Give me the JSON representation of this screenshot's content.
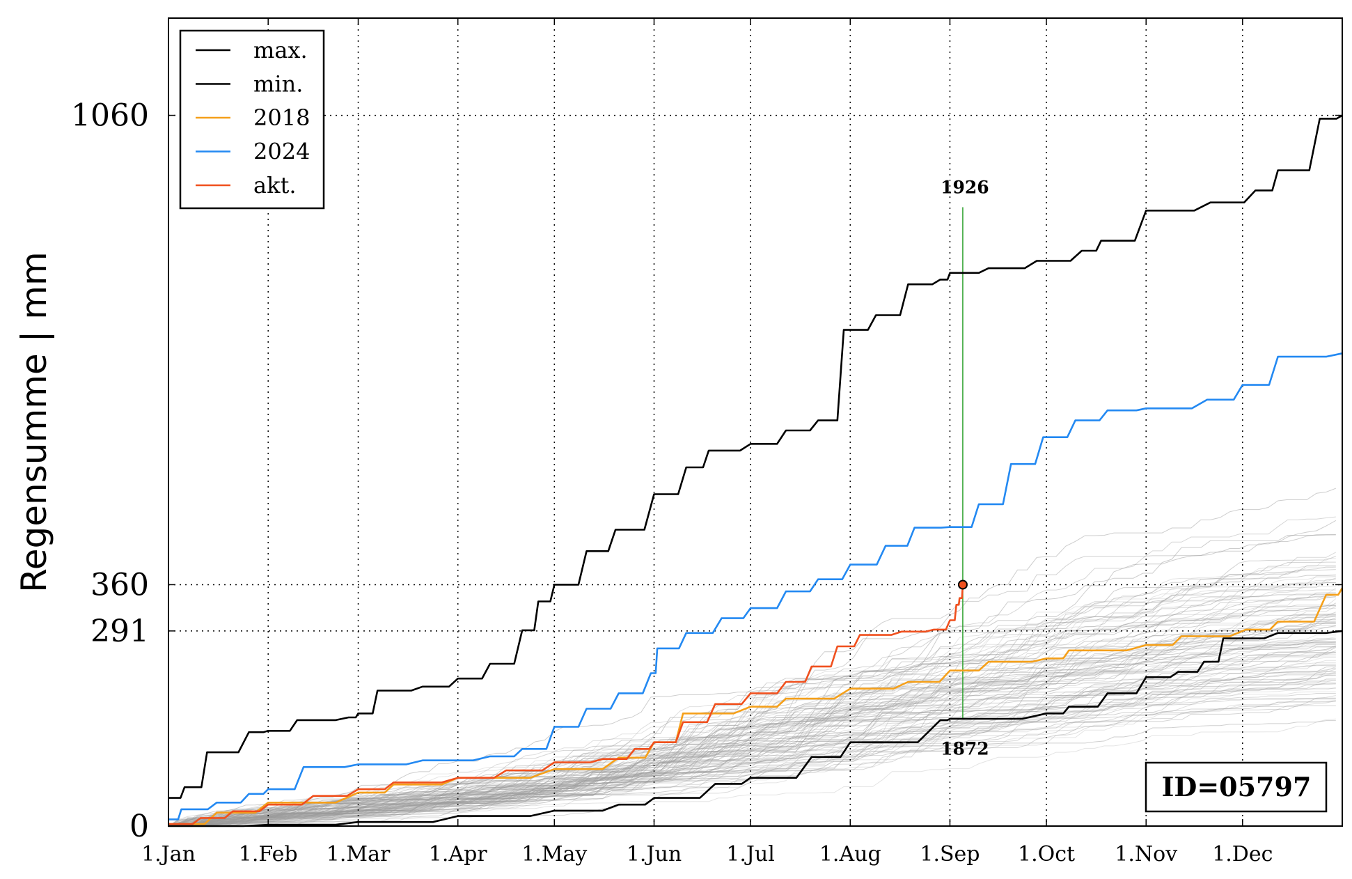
{
  "chart_data": {
    "type": "line",
    "title": "",
    "xlabel": "",
    "ylabel": "Regensumme | mm",
    "x_ticks": [
      "1.Jan",
      "1.Feb",
      "1.Mar",
      "1.Apr",
      "1.May",
      "1.Jun",
      "1.Jul",
      "1.Aug",
      "1.Sep",
      "1.Oct",
      "1.Nov",
      "1.Dec"
    ],
    "x_tick_days": [
      0,
      31,
      59,
      90,
      120,
      151,
      181,
      212,
      243,
      273,
      304,
      334
    ],
    "xlim": [
      0,
      365
    ],
    "ylim": [
      0,
      1205
    ],
    "y_ticks": [
      0,
      291,
      360,
      1060
    ],
    "y_tick_labels": [
      "0",
      "291",
      "360",
      "1060"
    ],
    "grid": "dotted",
    "legend_position": "top-left",
    "legend": [
      {
        "name": "max.",
        "color": "#000000"
      },
      {
        "name": "min.",
        "color": "#000000"
      },
      {
        "name": "2018",
        "color": "#F5A01A"
      },
      {
        "name": "2024",
        "color": "#2389F2"
      },
      {
        "name": "akt.",
        "color": "#F0501E"
      }
    ],
    "series": [
      {
        "key": "max",
        "color": "#000000",
        "points": [
          [
            0,
            42
          ],
          [
            5,
            58
          ],
          [
            12,
            110
          ],
          [
            25,
            140
          ],
          [
            31,
            142
          ],
          [
            40,
            158
          ],
          [
            56,
            162
          ],
          [
            59,
            168
          ],
          [
            65,
            202
          ],
          [
            79,
            208
          ],
          [
            90,
            220
          ],
          [
            100,
            242
          ],
          [
            110,
            292
          ],
          [
            115,
            335
          ],
          [
            120,
            360
          ],
          [
            130,
            410
          ],
          [
            139,
            442
          ],
          [
            151,
            495
          ],
          [
            161,
            535
          ],
          [
            168,
            560
          ],
          [
            181,
            570
          ],
          [
            192,
            590
          ],
          [
            202,
            605
          ],
          [
            210,
            740
          ],
          [
            220,
            762
          ],
          [
            230,
            808
          ],
          [
            240,
            815
          ],
          [
            243,
            825
          ],
          [
            255,
            832
          ],
          [
            270,
            843
          ],
          [
            284,
            858
          ],
          [
            290,
            873
          ],
          [
            304,
            918
          ],
          [
            324,
            930
          ],
          [
            338,
            948
          ],
          [
            345,
            978
          ],
          [
            358,
            1055
          ],
          [
            365,
            1060
          ]
        ]
      },
      {
        "key": "min",
        "color": "#000000",
        "points": [
          [
            0,
            0
          ],
          [
            31,
            2
          ],
          [
            59,
            6
          ],
          [
            90,
            15
          ],
          [
            120,
            23
          ],
          [
            140,
            32
          ],
          [
            151,
            42
          ],
          [
            170,
            63
          ],
          [
            181,
            72
          ],
          [
            200,
            103
          ],
          [
            212,
            125
          ],
          [
            240,
            158
          ],
          [
            243,
            160
          ],
          [
            273,
            168
          ],
          [
            280,
            178
          ],
          [
            292,
            198
          ],
          [
            304,
            222
          ],
          [
            314,
            230
          ],
          [
            322,
            245
          ],
          [
            328,
            280
          ],
          [
            345,
            288
          ],
          [
            365,
            291
          ]
        ]
      },
      {
        "key": "y2018",
        "color": "#F5A01A",
        "points": [
          [
            0,
            3
          ],
          [
            15,
            20
          ],
          [
            31,
            35
          ],
          [
            59,
            50
          ],
          [
            70,
            62
          ],
          [
            90,
            72
          ],
          [
            120,
            85
          ],
          [
            140,
            102
          ],
          [
            151,
            125
          ],
          [
            160,
            168
          ],
          [
            181,
            178
          ],
          [
            192,
            190
          ],
          [
            212,
            205
          ],
          [
            230,
            215
          ],
          [
            243,
            232
          ],
          [
            255,
            245
          ],
          [
            273,
            250
          ],
          [
            280,
            262
          ],
          [
            304,
            270
          ],
          [
            315,
            283
          ],
          [
            335,
            293
          ],
          [
            345,
            305
          ],
          [
            360,
            345
          ],
          [
            365,
            355
          ]
        ]
      },
      {
        "key": "y2024",
        "color": "#2389F2",
        "points": [
          [
            0,
            10
          ],
          [
            4,
            25
          ],
          [
            15,
            35
          ],
          [
            25,
            48
          ],
          [
            31,
            55
          ],
          [
            42,
            88
          ],
          [
            59,
            92
          ],
          [
            79,
            98
          ],
          [
            100,
            104
          ],
          [
            110,
            115
          ],
          [
            120,
            148
          ],
          [
            130,
            175
          ],
          [
            140,
            198
          ],
          [
            150,
            228
          ],
          [
            152,
            265
          ],
          [
            161,
            288
          ],
          [
            172,
            310
          ],
          [
            181,
            325
          ],
          [
            192,
            350
          ],
          [
            202,
            368
          ],
          [
            212,
            390
          ],
          [
            223,
            418
          ],
          [
            232,
            445
          ],
          [
            243,
            446
          ],
          [
            252,
            480
          ],
          [
            262,
            540
          ],
          [
            272,
            580
          ],
          [
            282,
            605
          ],
          [
            292,
            620
          ],
          [
            304,
            623
          ],
          [
            323,
            636
          ],
          [
            334,
            658
          ],
          [
            345,
            700
          ],
          [
            365,
            705
          ]
        ]
      },
      {
        "key": "akt",
        "color": "#F0501E",
        "points": [
          [
            0,
            3
          ],
          [
            10,
            12
          ],
          [
            20,
            22
          ],
          [
            31,
            32
          ],
          [
            45,
            45
          ],
          [
            59,
            55
          ],
          [
            70,
            65
          ],
          [
            90,
            72
          ],
          [
            105,
            83
          ],
          [
            120,
            95
          ],
          [
            135,
            100
          ],
          [
            145,
            115
          ],
          [
            151,
            125
          ],
          [
            160,
            155
          ],
          [
            170,
            182
          ],
          [
            181,
            198
          ],
          [
            192,
            215
          ],
          [
            200,
            238
          ],
          [
            208,
            268
          ],
          [
            215,
            285
          ],
          [
            228,
            290
          ],
          [
            238,
            293
          ],
          [
            243,
            307
          ],
          [
            245,
            330
          ],
          [
            246,
            340
          ],
          [
            247,
            360
          ]
        ]
      }
    ],
    "highlight_point": {
      "x": 247,
      "y": 360
    },
    "annotations": [
      {
        "text": "1926",
        "x": 247,
        "y": 925
      },
      {
        "text": "1872",
        "x": 247,
        "y": 152
      }
    ],
    "id_box": "ID=05797"
  }
}
